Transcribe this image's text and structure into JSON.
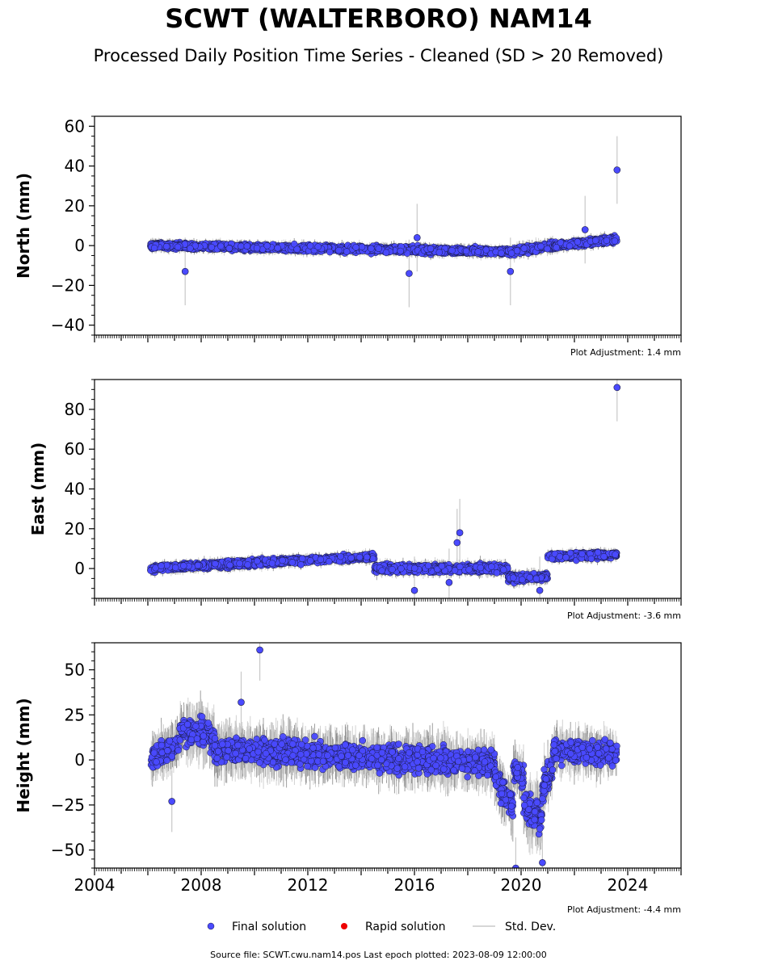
{
  "title": "SCWT (WALTERBORO) NAM14",
  "subtitle": "Processed Daily Position Time Series - Cleaned (SD > 20 Removed)",
  "footer": "Source file: SCWT.cwu.nam14.pos  Last epoch plotted: 2023-08-09 12:00:00",
  "legend": {
    "final": "Final solution",
    "rapid": "Rapid solution",
    "stddev": "Std. Dev."
  },
  "colors": {
    "final": "#4a4aff",
    "rapid": "#ee0000",
    "stddev": "#c8c8c8"
  },
  "chart_data": [
    {
      "type": "scatter",
      "ylabel": "North (mm)",
      "adjustment": "Plot Adjustment: 1.4 mm",
      "xlim": [
        2004,
        2026
      ],
      "ylim": [
        -45,
        65
      ],
      "yticks": [
        -40,
        -20,
        0,
        20,
        40,
        60
      ],
      "yminor": 5,
      "series": [
        {
          "name": "Final solution",
          "segments": [
            {
              "x": [
                2006.1,
                2019.6
              ],
              "y": [
                0,
                -3
              ],
              "spread": 2.5
            },
            {
              "x": [
                2019.6,
                2021.2
              ],
              "y": [
                -3,
                0
              ],
              "spread": 3
            },
            {
              "x": [
                2021.2,
                2023.6
              ],
              "y": [
                0,
                3
              ],
              "spread": 2.5
            }
          ]
        }
      ],
      "outliers": [
        {
          "x": 2023.6,
          "y": 38
        },
        {
          "x": 2007.4,
          "y": -13
        },
        {
          "x": 2015.8,
          "y": -14
        },
        {
          "x": 2019.6,
          "y": -13
        },
        {
          "x": 2022.4,
          "y": 8
        },
        {
          "x": 2016.1,
          "y": 4
        }
      ]
    },
    {
      "type": "scatter",
      "ylabel": "East (mm)",
      "adjustment": "Plot Adjustment: -3.6 mm",
      "xlim": [
        2004,
        2026
      ],
      "ylim": [
        -15,
        95
      ],
      "yticks": [
        0,
        20,
        40,
        60,
        80
      ],
      "yminor": 5,
      "series": [
        {
          "name": "Final solution",
          "segments": [
            {
              "x": [
                2006.1,
                2014.5
              ],
              "y": [
                0,
                6
              ],
              "spread": 2.5
            },
            {
              "x": [
                2014.5,
                2019.5
              ],
              "y": [
                0,
                0
              ],
              "spread": 3
            },
            {
              "x": [
                2019.5,
                2021.0
              ],
              "y": [
                -5,
                -4
              ],
              "spread": 3
            },
            {
              "x": [
                2021.0,
                2023.6
              ],
              "y": [
                6,
                7
              ],
              "spread": 2.5
            }
          ]
        }
      ],
      "outliers": [
        {
          "x": 2023.6,
          "y": 91
        },
        {
          "x": 2017.7,
          "y": 18
        },
        {
          "x": 2017.6,
          "y": 13
        },
        {
          "x": 2016.0,
          "y": -11
        },
        {
          "x": 2017.3,
          "y": -7
        },
        {
          "x": 2020.7,
          "y": -11
        }
      ]
    },
    {
      "type": "scatter",
      "ylabel": "Height (mm)",
      "adjustment": "Plot Adjustment: -4.4 mm",
      "xlim": [
        2004,
        2026
      ],
      "ylim": [
        -60,
        65
      ],
      "yticks": [
        -50,
        -25,
        0,
        25,
        50
      ],
      "yminor": 5,
      "xticks": [
        2004,
        2008,
        2012,
        2016,
        2020,
        2024
      ],
      "series": [
        {
          "name": "Final solution",
          "segments": [
            {
              "x": [
                2006.1,
                2007.2
              ],
              "y": [
                0,
                10
              ],
              "spread": 10
            },
            {
              "x": [
                2007.2,
                2008.5
              ],
              "y": [
                18,
                12
              ],
              "spread": 12
            },
            {
              "x": [
                2008.5,
                2019.0
              ],
              "y": [
                6,
                -2
              ],
              "spread": 11
            },
            {
              "x": [
                2019.0,
                2019.7
              ],
              "y": [
                -8,
                -28
              ],
              "spread": 12
            },
            {
              "x": [
                2019.7,
                2020.1
              ],
              "y": [
                -5,
                -10
              ],
              "spread": 10
            },
            {
              "x": [
                2020.1,
                2020.8
              ],
              "y": [
                -25,
                -32
              ],
              "spread": 14
            },
            {
              "x": [
                2020.8,
                2021.2
              ],
              "y": [
                -15,
                -5
              ],
              "spread": 12
            },
            {
              "x": [
                2021.2,
                2023.6
              ],
              "y": [
                5,
                3
              ],
              "spread": 10
            }
          ]
        }
      ],
      "outliers": [
        {
          "x": 2010.2,
          "y": 61
        },
        {
          "x": 2019.8,
          "y": -60
        },
        {
          "x": 2020.8,
          "y": -57
        },
        {
          "x": 2006.9,
          "y": -23
        },
        {
          "x": 2009.5,
          "y": 32
        }
      ]
    }
  ]
}
